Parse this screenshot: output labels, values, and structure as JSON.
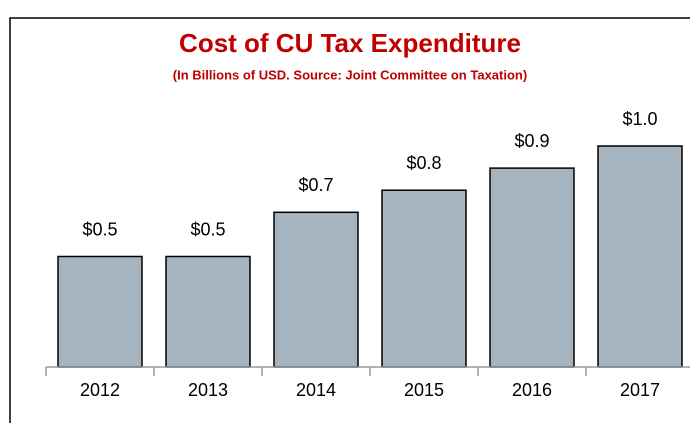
{
  "chart_data": {
    "type": "bar",
    "title": "Cost of CU Tax Expenditure",
    "subtitle": "(In Billions of USD.  Source: Joint Committee on Taxation)",
    "categories": [
      "2012",
      "2013",
      "2014",
      "2015",
      "2016",
      "2017"
    ],
    "values": [
      0.5,
      0.5,
      0.7,
      0.8,
      0.9,
      1.0
    ],
    "value_labels": [
      "$0.5",
      "$0.5",
      "$0.7",
      "$0.8",
      "$0.9",
      "$1.0"
    ],
    "color": "#a5b4be",
    "ylim": [
      0,
      1.0
    ]
  }
}
